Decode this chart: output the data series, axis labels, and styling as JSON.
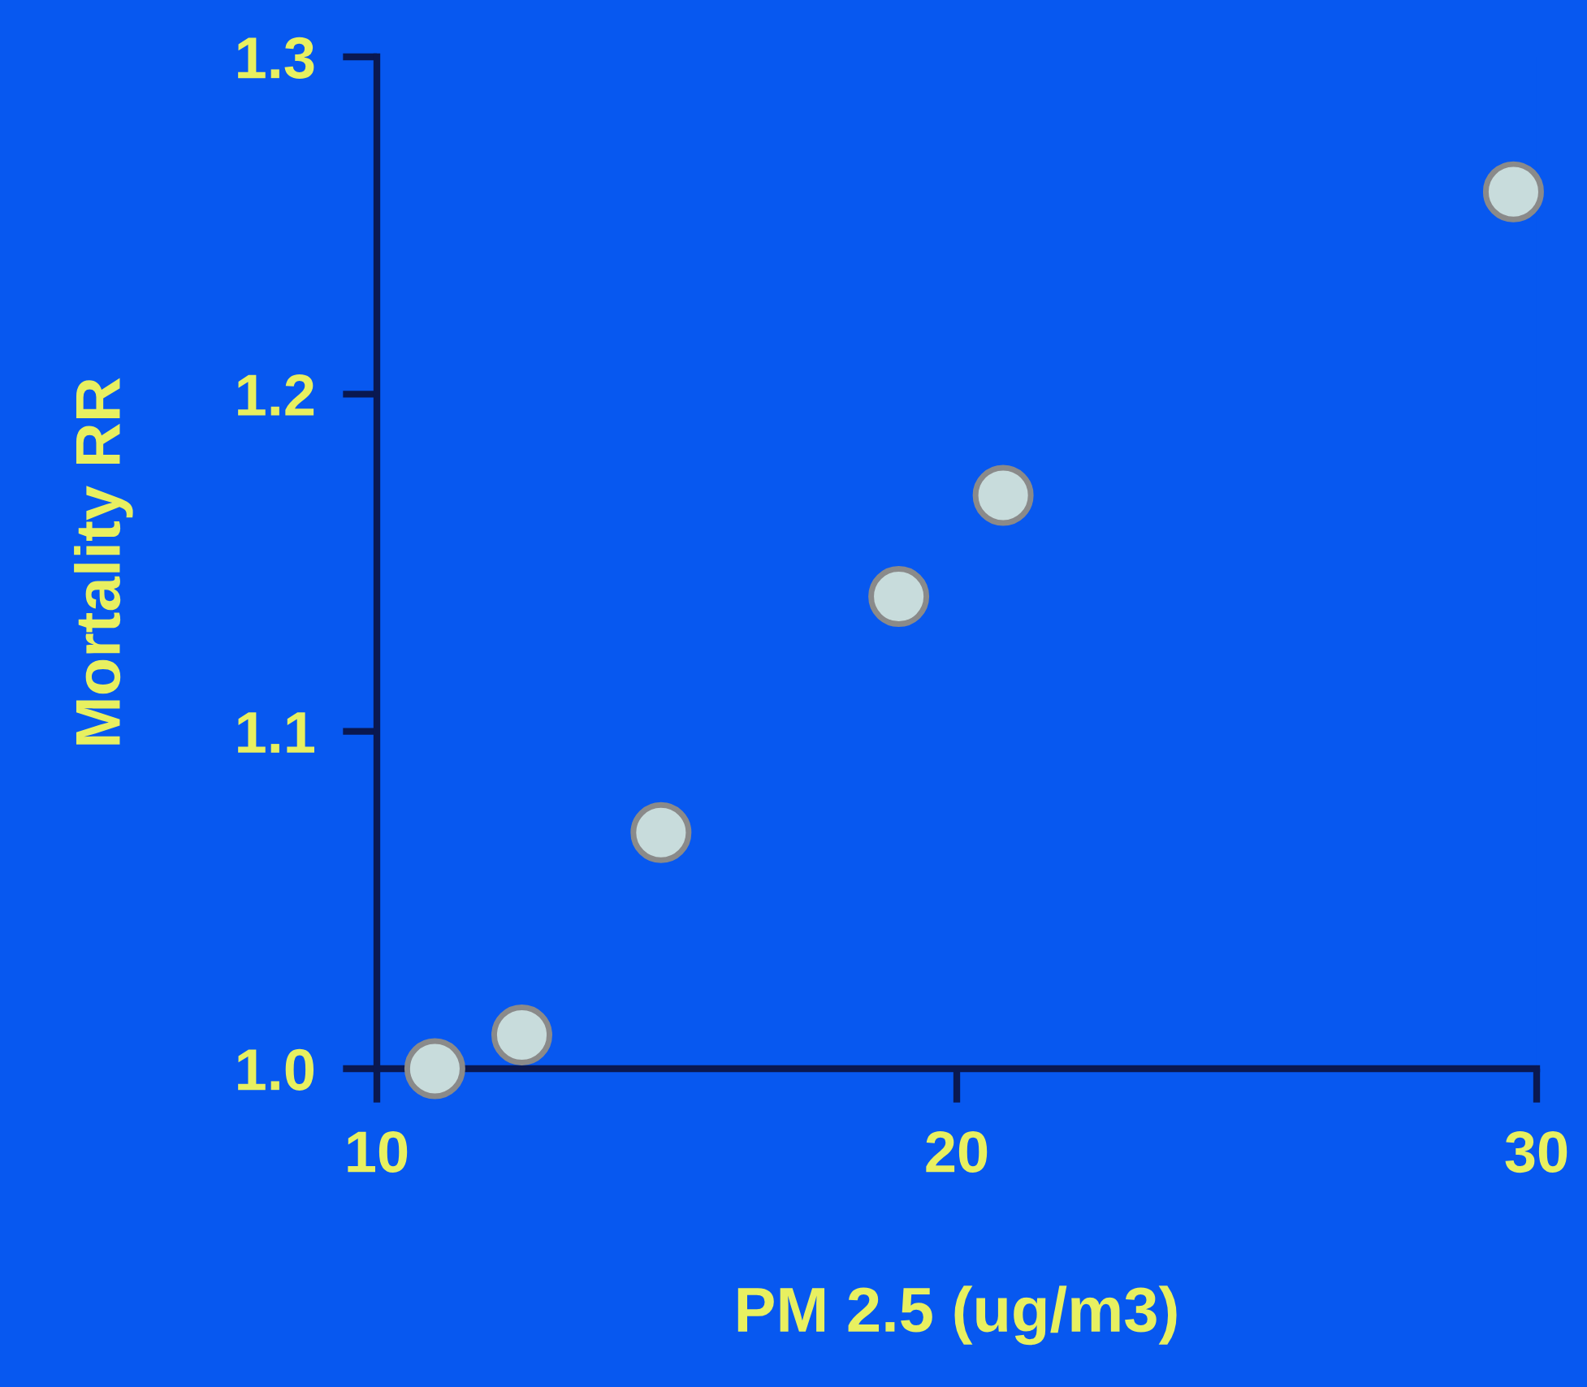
{
  "chart_data": {
    "type": "scatter",
    "xlabel": "PM 2.5 (ug/m3)",
    "ylabel": "Mortality RR",
    "x": [
      11.0,
      12.5,
      14.9,
      19.0,
      20.8,
      29.6
    ],
    "values": [
      1.0,
      1.01,
      1.07,
      1.14,
      1.17,
      1.26
    ],
    "color": "#c8dcdc",
    "marker": "circle",
    "xlim": [
      10,
      30
    ],
    "xticks": [
      10,
      20,
      30
    ],
    "ylim": [
      1.0,
      1.3
    ],
    "yticks": [
      {
        "value": 1.0,
        "label": "1.0"
      },
      1.1,
      1.2,
      1.3
    ],
    "grid": false,
    "legend": false
  }
}
